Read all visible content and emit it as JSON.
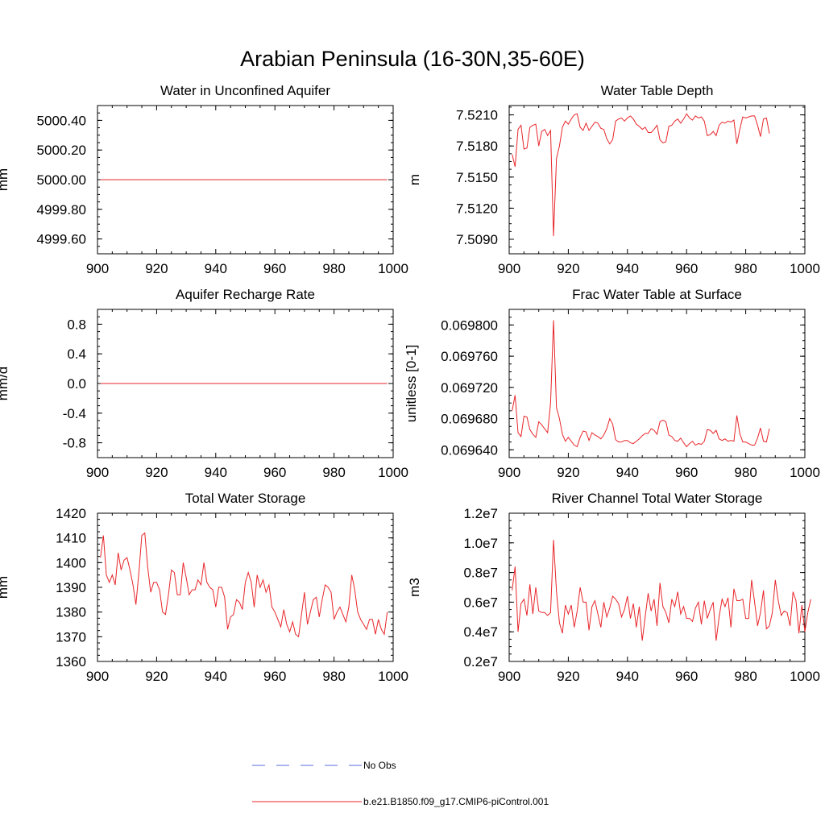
{
  "title": "Arabian Peninsula (16-30N,35-60E)",
  "legend": {
    "items": [
      {
        "label": "No Obs",
        "color": "#5a6ee0",
        "dash": "dashed"
      },
      {
        "label": "b.e21.B1850.f09_g17.CMIP6-piControl.001",
        "color": "#e8262a",
        "dash": "solid"
      }
    ]
  },
  "colors": {
    "series": "#e8262a",
    "axis": "#000000"
  },
  "chart_data": [
    {
      "type": "line",
      "title": "Water in Unconfined Aquifer",
      "ylabel": "mm",
      "xlabel": "",
      "xlim": [
        900,
        1000
      ],
      "ylim": [
        4999.5,
        5000.5
      ],
      "xticks": [
        900,
        920,
        940,
        960,
        980,
        1000
      ],
      "xtick_labels": [
        "900",
        "920",
        "940",
        "960",
        "980",
        "1000"
      ],
      "yticks": [
        4999.6,
        4999.8,
        5000.0,
        5000.2,
        5000.4
      ],
      "ytick_labels": [
        "4999.60",
        "4999.80",
        "5000.00",
        "5000.20",
        "5000.40"
      ],
      "x_start": 901,
      "values": [
        5000,
        5000,
        5000,
        5000,
        5000,
        5000,
        5000,
        5000,
        5000,
        5000,
        5000,
        5000,
        5000,
        5000,
        5000,
        5000,
        5000,
        5000,
        5000,
        5000,
        5000,
        5000,
        5000,
        5000,
        5000,
        5000,
        5000,
        5000,
        5000,
        5000,
        5000,
        5000,
        5000,
        5000,
        5000,
        5000,
        5000,
        5000,
        5000,
        5000,
        5000,
        5000,
        5000,
        5000,
        5000,
        5000,
        5000,
        5000,
        5000,
        5000,
        5000,
        5000,
        5000,
        5000,
        5000,
        5000,
        5000,
        5000,
        5000,
        5000,
        5000,
        5000,
        5000,
        5000,
        5000,
        5000,
        5000,
        5000,
        5000,
        5000,
        5000,
        5000,
        5000,
        5000,
        5000,
        5000,
        5000,
        5000,
        5000,
        5000,
        5000,
        5000,
        5000,
        5000,
        5000,
        5000,
        5000,
        5000,
        5000,
        5000,
        5000,
        5000,
        5000,
        5000,
        5000,
        5000,
        5000,
        5000
      ]
    },
    {
      "type": "line",
      "title": "Water Table Depth",
      "ylabel": "m",
      "xlabel": "",
      "xlim": [
        900,
        1000
      ],
      "ylim": [
        7.5076,
        7.5219
      ],
      "xticks": [
        900,
        920,
        940,
        960,
        980,
        1000
      ],
      "xtick_labels": [
        "900",
        "920",
        "940",
        "960",
        "980",
        "1000"
      ],
      "yticks": [
        7.509,
        7.512,
        7.515,
        7.518,
        7.521
      ],
      "ytick_labels": [
        "7.5090",
        "7.5120",
        "7.5150",
        "7.5180",
        "7.5210"
      ],
      "x_start": 901,
      "values": [
        7.5172,
        7.516,
        7.5196,
        7.52,
        7.5177,
        7.5178,
        7.5198,
        7.52,
        7.5201,
        7.518,
        7.5194,
        7.5196,
        7.519,
        7.5195,
        7.5093,
        7.5168,
        7.518,
        7.5198,
        7.5204,
        7.5201,
        7.5206,
        7.521,
        7.5211,
        7.5198,
        7.5195,
        7.5202,
        7.5195,
        7.5199,
        7.5203,
        7.5202,
        7.5197,
        7.5196,
        7.5187,
        7.5182,
        7.5186,
        7.5204,
        7.5206,
        7.5207,
        7.5204,
        7.5207,
        7.5209,
        7.5206,
        7.5201,
        7.5199,
        7.5196,
        7.5198,
        7.5193,
        7.5193,
        7.5196,
        7.52,
        7.5186,
        7.5183,
        7.5184,
        7.5199,
        7.52,
        7.5204,
        7.5206,
        7.5202,
        7.5206,
        7.5211,
        7.5207,
        7.5205,
        7.5209,
        7.5207,
        7.5208,
        7.5204,
        7.519,
        7.5191,
        7.5194,
        7.519,
        7.52,
        7.5203,
        7.5202,
        7.5204,
        7.5203,
        7.5205,
        7.5182,
        7.5196,
        7.5208,
        7.5207,
        7.5208,
        7.5209,
        7.5209,
        7.52,
        7.5189,
        7.5206,
        7.5207,
        7.5192
      ]
    },
    {
      "type": "line",
      "title": "Aquifer Recharge Rate",
      "ylabel": "mm/d",
      "xlabel": "",
      "xlim": [
        900,
        1000
      ],
      "ylim": [
        -1.0,
        1.0
      ],
      "xticks": [
        900,
        920,
        940,
        960,
        980,
        1000
      ],
      "xtick_labels": [
        "900",
        "920",
        "940",
        "960",
        "980",
        "1000"
      ],
      "yticks": [
        -0.8,
        -0.4,
        0.0,
        0.4,
        0.8
      ],
      "ytick_labels": [
        "-0.8",
        "-0.4",
        "0.0",
        "0.4",
        "0.8"
      ],
      "x_start": 901,
      "values": [
        0,
        0,
        0,
        0,
        0,
        0,
        0,
        0,
        0,
        0,
        0,
        0,
        0,
        0,
        0,
        0,
        0,
        0,
        0,
        0,
        0,
        0,
        0,
        0,
        0,
        0,
        0,
        0,
        0,
        0,
        0,
        0,
        0,
        0,
        0,
        0,
        0,
        0,
        0,
        0,
        0,
        0,
        0,
        0,
        0,
        0,
        0,
        0,
        0,
        0,
        0,
        0,
        0,
        0,
        0,
        0,
        0,
        0,
        0,
        0,
        0,
        0,
        0,
        0,
        0,
        0,
        0,
        0,
        0,
        0,
        0,
        0,
        0,
        0,
        0,
        0,
        0,
        0,
        0,
        0,
        0,
        0,
        0,
        0,
        0,
        0,
        0,
        0,
        0,
        0,
        0,
        0,
        0,
        0,
        0,
        0,
        0,
        0
      ]
    },
    {
      "type": "line",
      "title": "Frac Water Table at Surface",
      "ylabel": "unitless [0-1]",
      "xlabel": "",
      "xlim": [
        900,
        1000
      ],
      "ylim": [
        0.06963,
        0.06982
      ],
      "xticks": [
        900,
        920,
        940,
        960,
        980,
        1000
      ],
      "xtick_labels": [
        "900",
        "920",
        "940",
        "960",
        "980",
        "1000"
      ],
      "yticks": [
        0.06964,
        0.06968,
        0.06972,
        0.06976,
        0.0698
      ],
      "ytick_labels": [
        "0.069640",
        "0.069680",
        "0.069720",
        "0.069760",
        "0.069800"
      ],
      "x_start": 901,
      "values": [
        0.06969,
        0.06971,
        0.069662,
        0.069657,
        0.069683,
        0.069682,
        0.069666,
        0.06966,
        0.069656,
        0.069676,
        0.069672,
        0.069667,
        0.069662,
        0.0697,
        0.069806,
        0.069694,
        0.06968,
        0.06966,
        0.069651,
        0.069656,
        0.069651,
        0.069646,
        0.069644,
        0.069656,
        0.069664,
        0.069663,
        0.069652,
        0.069662,
        0.069659,
        0.069657,
        0.069654,
        0.069659,
        0.069667,
        0.06968,
        0.069673,
        0.069653,
        0.06965,
        0.06965,
        0.069652,
        0.069652,
        0.069649,
        0.069648,
        0.069651,
        0.069654,
        0.069658,
        0.069661,
        0.069661,
        0.069667,
        0.069665,
        0.06966,
        0.069676,
        0.069678,
        0.069676,
        0.069659,
        0.069657,
        0.069652,
        0.069651,
        0.069655,
        0.069649,
        0.069644,
        0.069648,
        0.069651,
        0.069646,
        0.069648,
        0.069647,
        0.069651,
        0.069666,
        0.069665,
        0.069661,
        0.069665,
        0.069654,
        0.069652,
        0.069654,
        0.069651,
        0.069652,
        0.069651,
        0.069684,
        0.069661,
        0.06965,
        0.06965,
        0.069648,
        0.069646,
        0.069646,
        0.069655,
        0.069668,
        0.069651,
        0.06965,
        0.069667
      ]
    },
    {
      "type": "line",
      "title": "Total Water Storage",
      "ylabel": "mm",
      "xlabel": "",
      "xlim": [
        900,
        1000
      ],
      "ylim": [
        1360,
        1420
      ],
      "xticks": [
        900,
        920,
        940,
        960,
        980,
        1000
      ],
      "xtick_labels": [
        "900",
        "920",
        "940",
        "960",
        "980",
        "1000"
      ],
      "yticks": [
        1360,
        1370,
        1380,
        1390,
        1400,
        1410,
        1420
      ],
      "ytick_labels": [
        "1360",
        "1370",
        "1380",
        "1390",
        "1400",
        "1410",
        "1420"
      ],
      "x_start": 901,
      "values": [
        1402,
        1411,
        1395,
        1392,
        1395,
        1391,
        1404,
        1397,
        1401,
        1402,
        1397,
        1391,
        1383,
        1396,
        1411,
        1412,
        1398,
        1388,
        1392,
        1392,
        1389,
        1380,
        1379,
        1387,
        1397,
        1396,
        1387,
        1387,
        1400,
        1394,
        1387,
        1389,
        1389,
        1393,
        1391,
        1400,
        1392,
        1390,
        1389,
        1382,
        1390,
        1390,
        1386,
        1373,
        1378,
        1379,
        1385,
        1384,
        1381,
        1392,
        1396,
        1392,
        1382,
        1395,
        1390,
        1393,
        1388,
        1391,
        1382,
        1380,
        1377,
        1374,
        1381,
        1375,
        1372,
        1376,
        1371,
        1370,
        1379,
        1388,
        1375,
        1380,
        1385,
        1386,
        1378,
        1385,
        1391,
        1390,
        1388,
        1377,
        1380,
        1382,
        1379,
        1376,
        1382,
        1395,
        1389,
        1380,
        1377,
        1375,
        1373,
        1377,
        1377,
        1371,
        1377,
        1373,
        1371,
        1380
      ]
    },
    {
      "type": "line",
      "title": "River Channel Total Water Storage",
      "ylabel": "m3",
      "xlabel": "",
      "xlim": [
        900,
        1000
      ],
      "ylim": [
        2000000.0,
        12000000.0
      ],
      "xticks": [
        900,
        920,
        940,
        960,
        980,
        1000
      ],
      "xtick_labels": [
        "900",
        "920",
        "940",
        "960",
        "980",
        "1000"
      ],
      "yticks": [
        2000000.0,
        4000000.0,
        6000000.0,
        8000000.0,
        10000000.0,
        12000000.0
      ],
      "ytick_labels": [
        "0.2e7",
        "0.4e7",
        "0.6e7",
        "0.8e7",
        "1.0e7",
        "1.2e7"
      ],
      "x_start": 901,
      "values": [
        6800000,
        8400000,
        4000000,
        5900000,
        6200000,
        5100000,
        7200000,
        5200000,
        7000000,
        5400000,
        5300000,
        5300000,
        5100000,
        5300000,
        10200000,
        6700000,
        4600000,
        3900000,
        5800000,
        5200000,
        5800000,
        4300000,
        5400000,
        7000000,
        6000000,
        6000000,
        4100000,
        5700000,
        6100000,
        5200000,
        4300000,
        6000000,
        5000000,
        5600000,
        6400000,
        6200000,
        5900000,
        5000000,
        5500000,
        6400000,
        4900000,
        5900000,
        4300000,
        5700000,
        3400000,
        5000000,
        6600000,
        5400000,
        6200000,
        4400000,
        7300000,
        5700000,
        5300000,
        4600000,
        6200000,
        5700000,
        6700000,
        5200000,
        5700000,
        4900000,
        4900000,
        4700000,
        5600000,
        6000000,
        4500000,
        6100000,
        4900000,
        5500000,
        6000000,
        3400000,
        5000000,
        6200000,
        5700000,
        6300000,
        4300000,
        6900000,
        6100000,
        6100000,
        6200000,
        4900000,
        4900000,
        7500000,
        6000000,
        4400000,
        5300000,
        6800000,
        4200000,
        4400000,
        5300000,
        7500000,
        6100000,
        5100000,
        5400000,
        5300000,
        4400000,
        6700000,
        6100000,
        3900000,
        5800000,
        4000000,
        5300000,
        6200000
      ]
    }
  ]
}
